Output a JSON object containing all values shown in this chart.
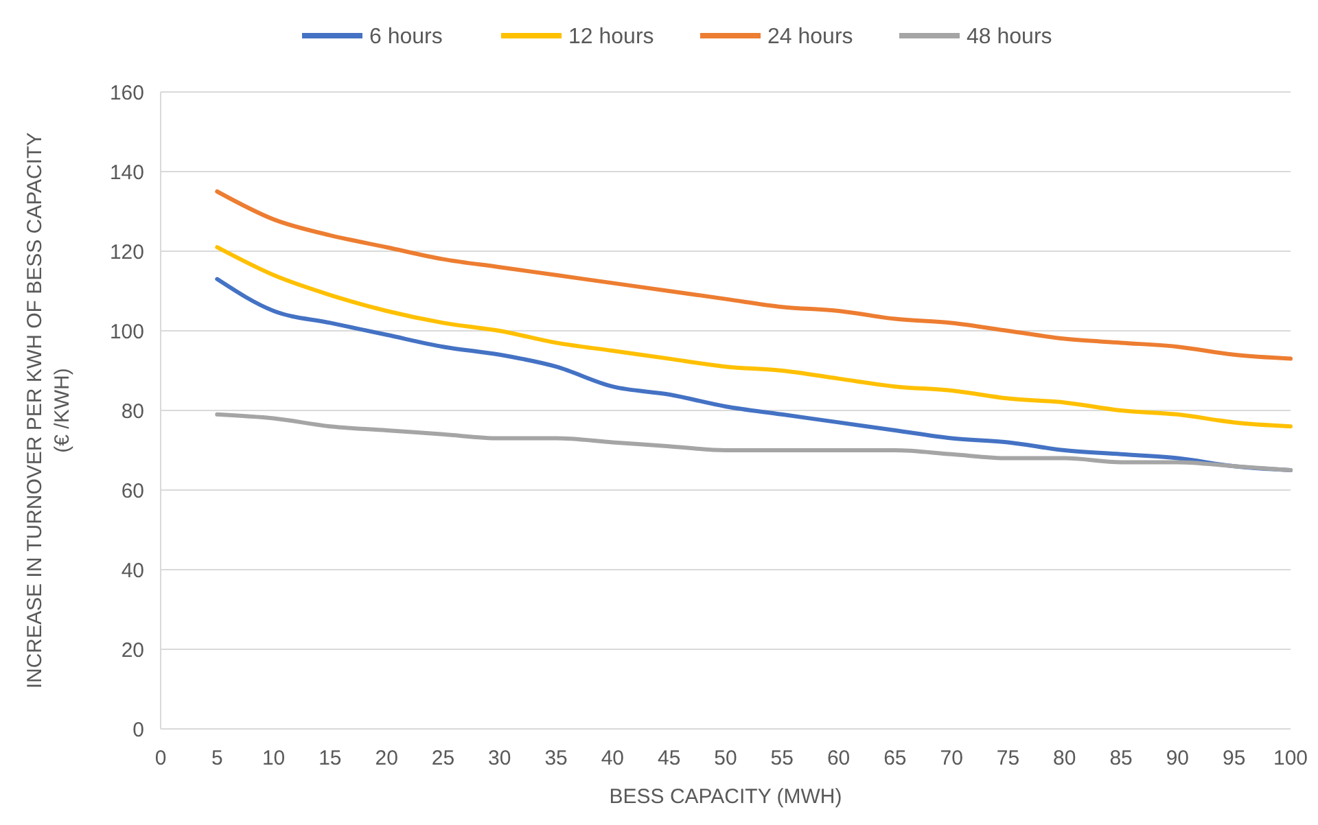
{
  "chart_data": {
    "type": "line",
    "xlabel": "BESS CAPACITY (MWH)",
    "ylabel": "INCREASE IN TURNOVER PER KWH OF BESS CAPACITY (€ /KWH)",
    "x": [
      5,
      10,
      15,
      20,
      25,
      30,
      35,
      40,
      45,
      50,
      55,
      60,
      65,
      70,
      75,
      80,
      85,
      90,
      95,
      100
    ],
    "xlim": [
      0,
      100
    ],
    "xticks": [
      0,
      5,
      10,
      15,
      20,
      25,
      30,
      35,
      40,
      45,
      50,
      55,
      60,
      65,
      70,
      75,
      80,
      85,
      90,
      95,
      100
    ],
    "ylim": [
      0,
      160
    ],
    "yticks": [
      0,
      20,
      40,
      60,
      80,
      100,
      120,
      140,
      160
    ],
    "grid": "y",
    "legend": "top",
    "marker": "none",
    "line_style": "solid",
    "series": [
      {
        "name": "6 hours",
        "color": "#4472c4",
        "values": [
          113,
          105,
          102,
          99,
          96,
          94,
          91,
          86,
          84,
          81,
          79,
          77,
          75,
          73,
          72,
          70,
          69,
          68,
          66,
          65
        ]
      },
      {
        "name": "12 hours",
        "color": "#ffc000",
        "values": [
          121,
          114,
          109,
          105,
          102,
          100,
          97,
          95,
          93,
          91,
          90,
          88,
          86,
          85,
          83,
          82,
          80,
          79,
          77,
          76
        ]
      },
      {
        "name": "24 hours",
        "color": "#ed7d31",
        "values": [
          135,
          128,
          124,
          121,
          118,
          116,
          114,
          112,
          110,
          108,
          106,
          105,
          103,
          102,
          100,
          98,
          97,
          96,
          94,
          93
        ]
      },
      {
        "name": "48 hours",
        "color": "#a5a5a5",
        "values": [
          79,
          78,
          76,
          75,
          74,
          73,
          73,
          72,
          71,
          70,
          70,
          70,
          70,
          69,
          68,
          68,
          67,
          67,
          66,
          65
        ]
      }
    ]
  }
}
